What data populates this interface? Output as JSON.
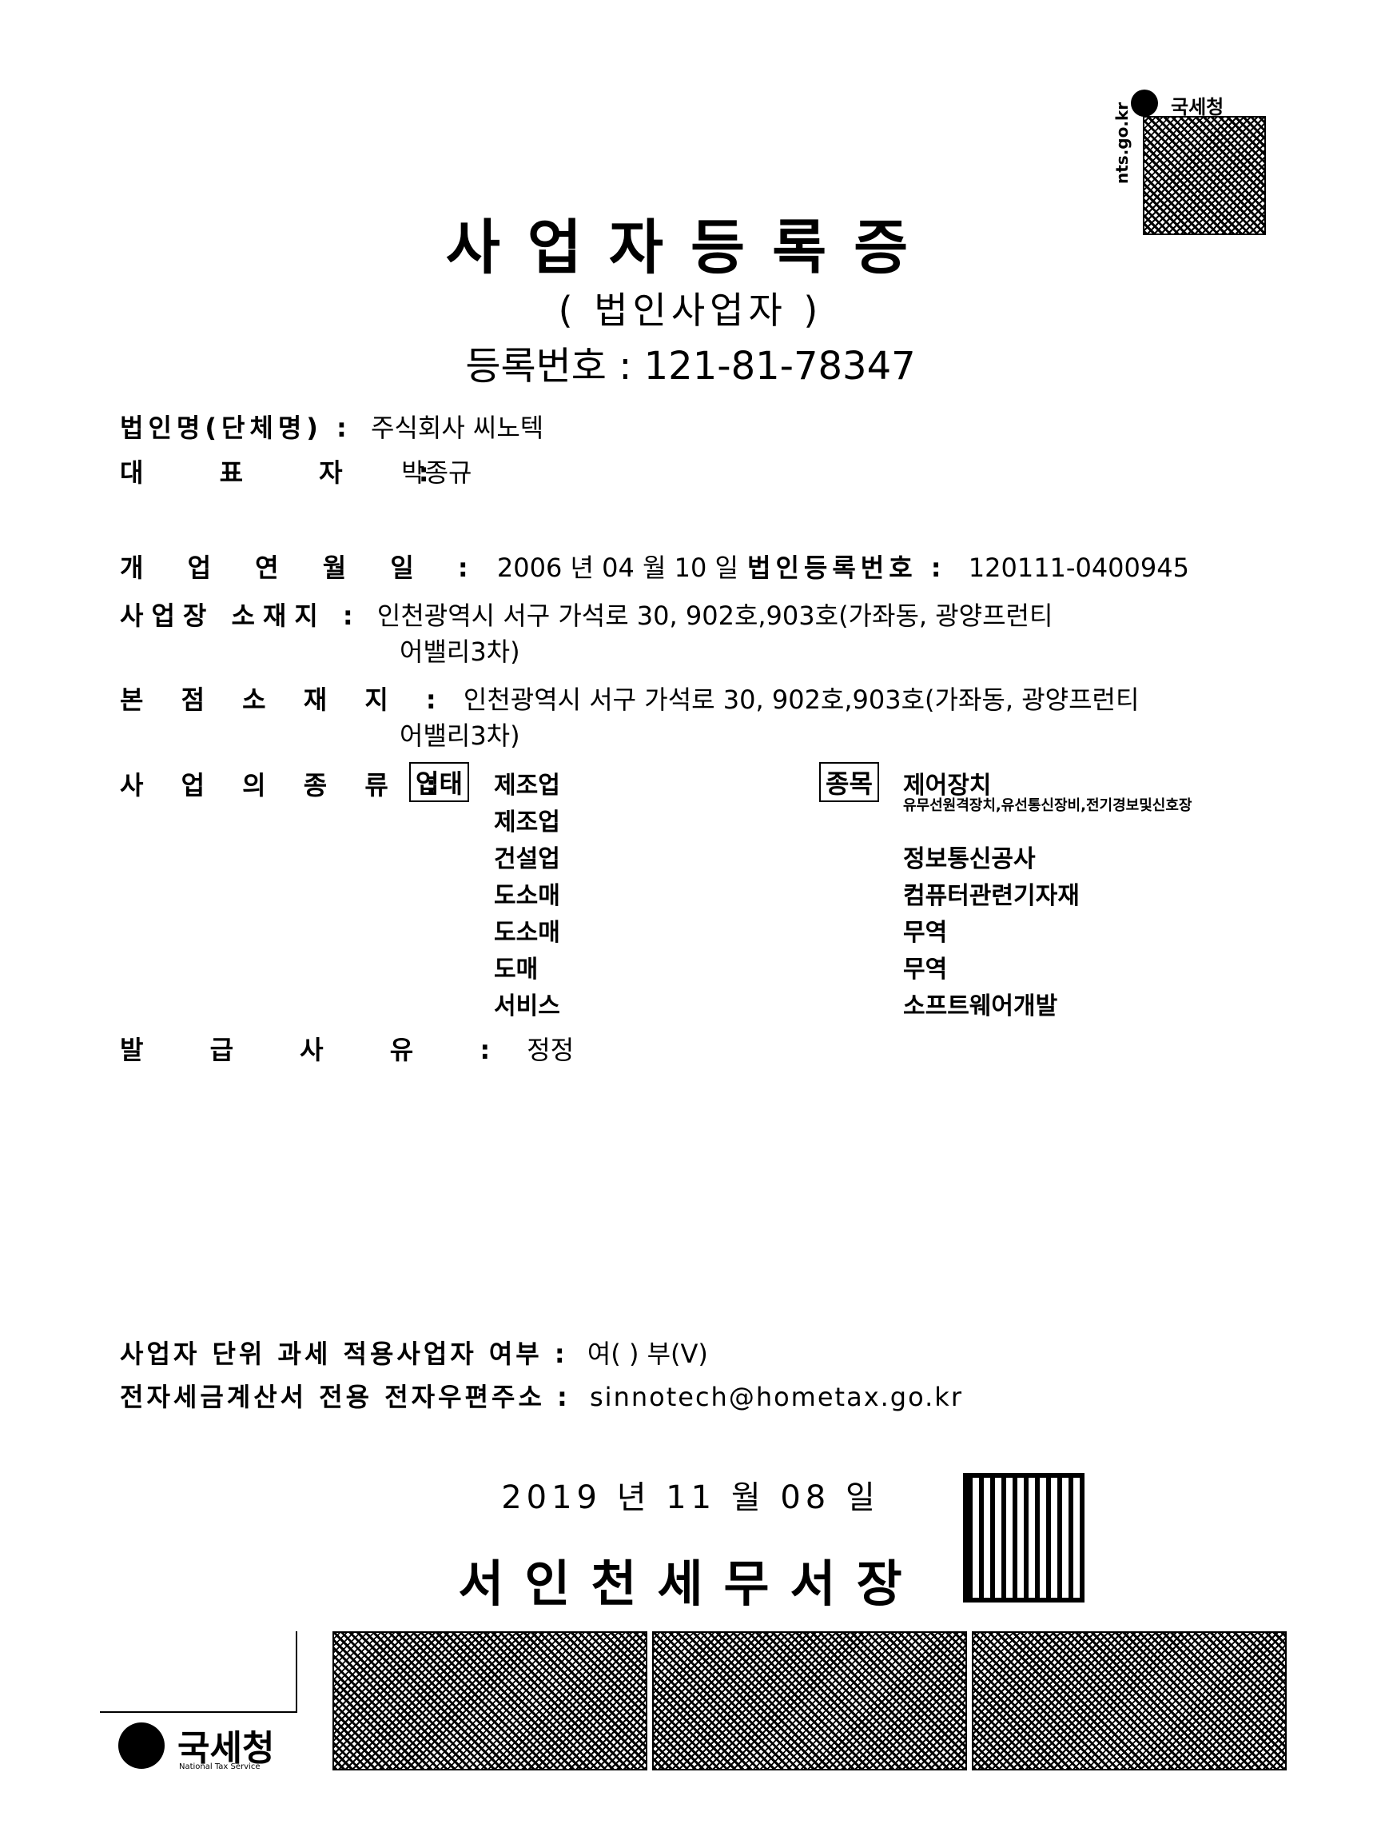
{
  "header": {
    "agency_badge": "국세청",
    "site_text": "nts.go.kr"
  },
  "title": "사업자등록증",
  "subtitle": "( 법인사업자 )",
  "registration_number": "등록번호 : 121-81-78347",
  "fields": {
    "corp_name_label": "법인명(단체명) :",
    "corp_name": "주식회사 씨노텍",
    "rep_label": "대 표 자 :",
    "rep": "박종규",
    "open_date_label": "개 업 연 월 일 :",
    "open_date": "2006 년 04 월 10 일",
    "corp_reg_label": "법인등록번호 :",
    "corp_reg": "120111-0400945",
    "biz_addr_label": "사업장 소재지 :",
    "biz_addr_1": "인천광역시 서구 가석로 30, 902호,903호(가좌동, 광양프런티",
    "biz_addr_2": "어밸리3차)",
    "hq_addr_label": "본 점 소 재 지 :",
    "hq_addr_1": "인천광역시 서구 가석로 30, 902호,903호(가좌동, 광양프런티",
    "hq_addr_2": "어밸리3차)",
    "biz_type_label": "사 업 의 종 류 :",
    "type_tag": "업태",
    "item_tag": "종목",
    "issue_reason_label": "발 급 사 유 :",
    "issue_reason": "정정"
  },
  "business_types": [
    "제조업",
    "제조업",
    "건설업",
    "도소매",
    "도소매",
    "도매",
    "서비스"
  ],
  "business_items": [
    "제어장치",
    "유무선원격장치,유선통신장비,전기경보및신호장",
    "정보통신공사",
    "컴퓨터관련기자재",
    "무역",
    "무역",
    "소프트웨어개발"
  ],
  "footer": {
    "unit_tax_label": "사업자 단위 과세 적용사업자 여부 :",
    "unit_tax_value": "여( ) 부(V)",
    "email_label": "전자세금계산서 전용 전자우편주소 :",
    "email": "sinnotech@hometax.go.kr",
    "issue_date": "2019 년 11 월 08 일",
    "office": "서인천세무서장",
    "logo_text": "국세청",
    "logo_sub": "National Tax Service"
  }
}
